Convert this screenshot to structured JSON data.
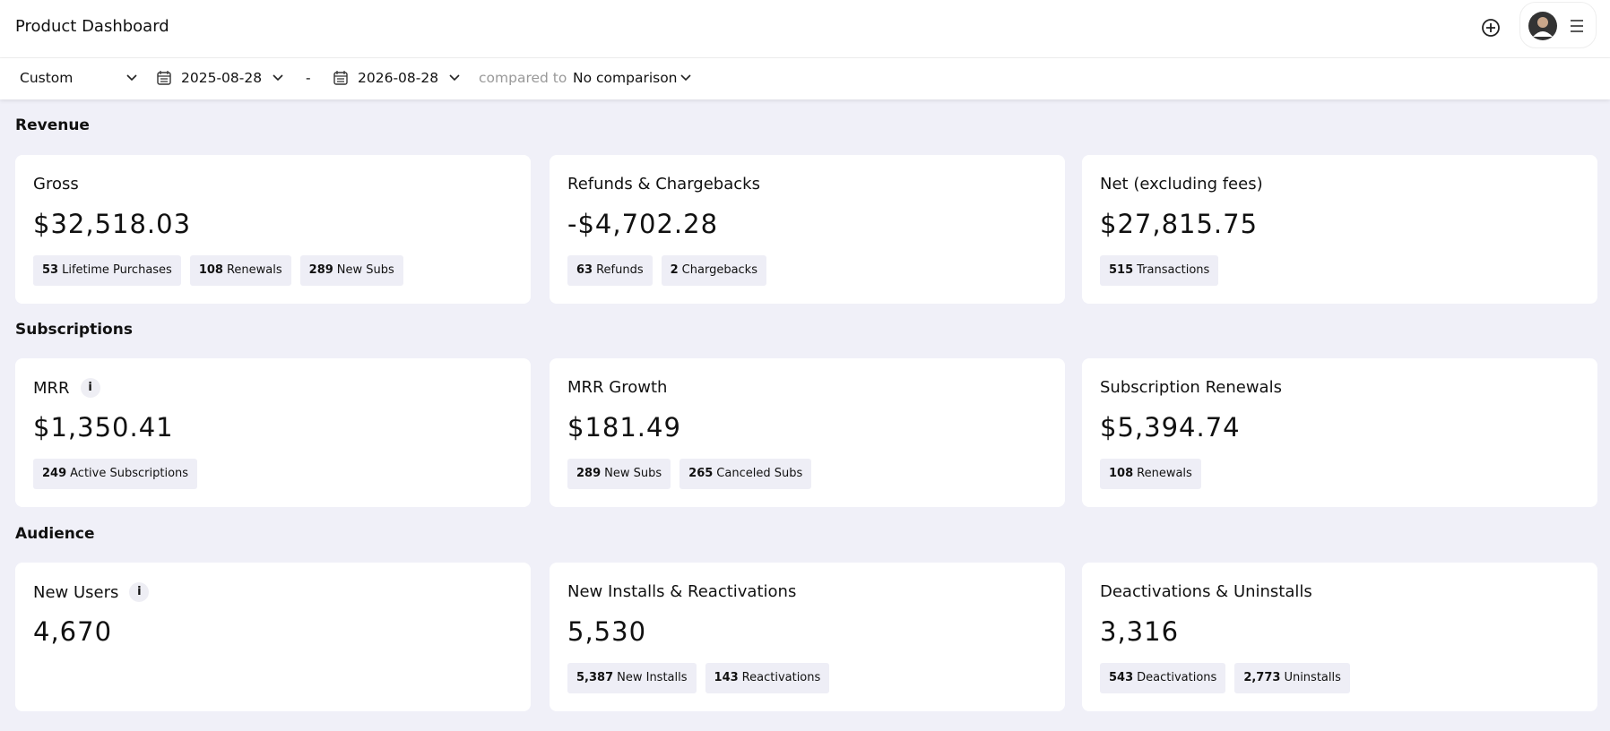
{
  "header": {
    "title": "Product Dashboard"
  },
  "filters": {
    "period": "Custom",
    "start_date": "2025-08-28",
    "separator": "-",
    "end_date": "2026-08-28",
    "compared_label": "compared to",
    "comparison": "No comparison"
  },
  "sections": [
    {
      "title": "Revenue",
      "cards": [
        {
          "title": "Gross",
          "value": "$32,518.03",
          "chips": [
            {
              "count": "53",
              "label": "Lifetime Purchases"
            },
            {
              "count": "108",
              "label": "Renewals"
            },
            {
              "count": "289",
              "label": "New Subs"
            }
          ]
        },
        {
          "title": "Refunds & Chargebacks",
          "value": "-$4,702.28",
          "chips": [
            {
              "count": "63",
              "label": "Refunds"
            },
            {
              "count": "2",
              "label": "Chargebacks"
            }
          ]
        },
        {
          "title": "Net (excluding fees)",
          "value": "$27,815.75",
          "chips": [
            {
              "count": "515",
              "label": "Transactions"
            }
          ]
        }
      ]
    },
    {
      "title": "Subscriptions",
      "cards": [
        {
          "title": "MRR",
          "info": "i",
          "value": "$1,350.41",
          "chips": [
            {
              "count": "249",
              "label": "Active Subscriptions"
            }
          ]
        },
        {
          "title": "MRR Growth",
          "value": "$181.49",
          "chips": [
            {
              "count": "289",
              "label": "New Subs"
            },
            {
              "count": "265",
              "label": "Canceled Subs"
            }
          ]
        },
        {
          "title": "Subscription Renewals",
          "value": "$5,394.74",
          "chips": [
            {
              "count": "108",
              "label": "Renewals"
            }
          ]
        }
      ]
    },
    {
      "title": "Audience",
      "cards": [
        {
          "title": "New Users",
          "info": "i",
          "value": "4,670",
          "chips": []
        },
        {
          "title": "New Installs & Reactivations",
          "value": "5,530",
          "chips": [
            {
              "count": "5,387",
              "label": "New Installs"
            },
            {
              "count": "143",
              "label": "Reactivations"
            }
          ]
        },
        {
          "title": "Deactivations & Uninstalls",
          "value": "3,316",
          "chips": [
            {
              "count": "543",
              "label": "Deactivations"
            },
            {
              "count": "2,773",
              "label": "Uninstalls"
            }
          ]
        }
      ]
    }
  ]
}
